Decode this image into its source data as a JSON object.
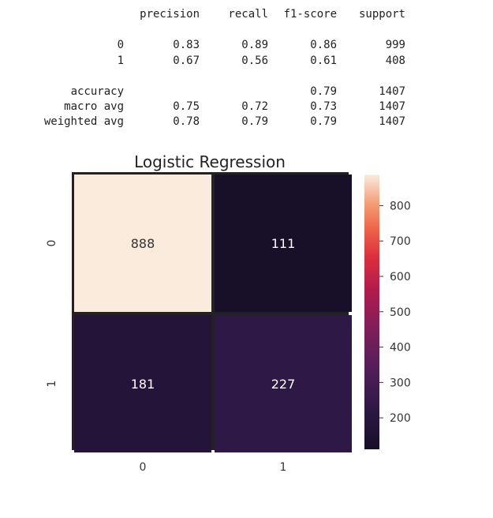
{
  "report": {
    "headers": [
      "precision",
      "recall",
      "f1-score",
      "support"
    ],
    "rows": [
      {
        "label": "0",
        "precision": "0.83",
        "recall": "0.89",
        "f1": "0.86",
        "support": "999"
      },
      {
        "label": "1",
        "precision": "0.67",
        "recall": "0.56",
        "f1": "0.61",
        "support": "408"
      },
      {
        "label": "accuracy",
        "precision": "",
        "recall": "",
        "f1": "0.79",
        "support": "1407"
      },
      {
        "label": "macro avg",
        "precision": "0.75",
        "recall": "0.72",
        "f1": "0.73",
        "support": "1407"
      },
      {
        "label": "weighted avg",
        "precision": "0.78",
        "recall": "0.79",
        "f1": "0.79",
        "support": "1407"
      }
    ]
  },
  "chart_data": {
    "type": "heatmap",
    "title": "Logistic Regression",
    "x_categories": [
      "0",
      "1"
    ],
    "y_categories": [
      "0",
      "1"
    ],
    "values": [
      [
        888,
        111
      ],
      [
        181,
        227
      ]
    ],
    "colorbar": {
      "ticks": [
        "200",
        "300",
        "400",
        "500",
        "600",
        "700",
        "800"
      ],
      "range": [
        111,
        888
      ]
    },
    "colormap": "rocket",
    "annot": true
  }
}
